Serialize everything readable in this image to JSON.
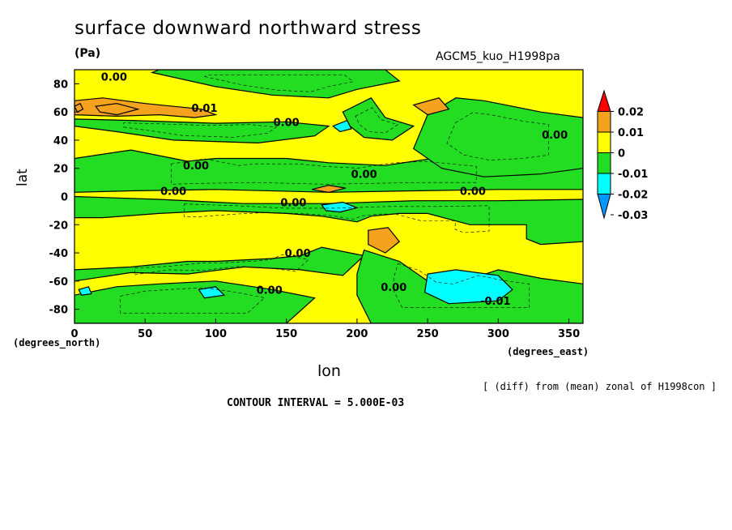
{
  "header": {
    "title": "surface downward northward stress",
    "units": "(Pa)",
    "run": "AGCM5_kuo_H1998pa"
  },
  "axes": {
    "ylabel": "lat",
    "xlabel": "lon",
    "y_units": "(degrees_north)",
    "x_units": "(degrees_east)"
  },
  "footer": {
    "diff_note": "[ (diff) from (mean) zonal of H1998con ]",
    "contour_interval": "CONTOUR INTERVAL = 5.000E-03"
  },
  "colors": {
    "red": "#ff0000",
    "orange": "#f5a21e",
    "yellow": "#ffff00",
    "green": "#22dd22",
    "cyan": "#00ffff",
    "blue": "#0099ff"
  },
  "chart_data": {
    "type": "heatmap",
    "title": "surface downward northward stress",
    "units": "Pa",
    "xlabel": "lon",
    "ylabel": "lat",
    "xlim": [
      0,
      360
    ],
    "ylim": [
      -90,
      90
    ],
    "xticks": [
      0,
      50,
      100,
      150,
      200,
      250,
      300,
      350
    ],
    "yticks": [
      -80,
      -60,
      -40,
      -20,
      0,
      20,
      40,
      60,
      80
    ],
    "contour_interval": 0.005,
    "colorbar": {
      "levels": [
        "0.02",
        "0.01",
        "0",
        "-0.01",
        "-0.02",
        "-0.03"
      ],
      "bins": [
        {
          "range": [
            0.02,
            null
          ],
          "color": "red"
        },
        {
          "range": [
            0.01,
            0.02
          ],
          "color": "orange"
        },
        {
          "range": [
            0.0,
            0.01
          ],
          "color": "yellow"
        },
        {
          "range": [
            -0.01,
            0.0
          ],
          "color": "green"
        },
        {
          "range": [
            -0.02,
            -0.01
          ],
          "color": "cyan"
        },
        {
          "range": [
            -0.03,
            -0.02
          ],
          "color": "blue"
        },
        {
          "range": [
            null,
            -0.03
          ],
          "color": "blue"
        }
      ]
    },
    "regions": [
      {
        "level": "green",
        "poly": [
          [
            0,
            27
          ],
          [
            40,
            33
          ],
          [
            80,
            25
          ],
          [
            100,
            27
          ],
          [
            150,
            27
          ],
          [
            180,
            24
          ],
          [
            220,
            22
          ],
          [
            260,
            28
          ],
          [
            300,
            30
          ],
          [
            360,
            24
          ],
          [
            360,
            5
          ],
          [
            300,
            5
          ],
          [
            240,
            4
          ],
          [
            180,
            3
          ],
          [
            100,
            5
          ],
          [
            40,
            4
          ],
          [
            0,
            3
          ]
        ]
      },
      {
        "level": "green",
        "poly": [
          [
            0,
            50
          ],
          [
            30,
            46
          ],
          [
            70,
            40
          ],
          [
            130,
            38
          ],
          [
            170,
            43
          ],
          [
            180,
            50
          ],
          [
            150,
            53
          ],
          [
            100,
            52
          ],
          [
            40,
            54
          ],
          [
            0,
            55
          ]
        ]
      },
      {
        "level": "green",
        "poly": [
          [
            0,
            0
          ],
          [
            60,
            -2
          ],
          [
            120,
            -5
          ],
          [
            180,
            -5
          ],
          [
            240,
            -3
          ],
          [
            300,
            -3
          ],
          [
            360,
            -2
          ],
          [
            360,
            -32
          ],
          [
            330,
            -34
          ],
          [
            320,
            -30
          ],
          [
            320,
            -20
          ],
          [
            280,
            -20
          ],
          [
            250,
            -12
          ],
          [
            230,
            -12
          ],
          [
            210,
            -14
          ],
          [
            200,
            -18
          ],
          [
            175,
            -14
          ],
          [
            150,
            -12
          ],
          [
            100,
            -10
          ],
          [
            60,
            -12
          ],
          [
            20,
            -15
          ],
          [
            0,
            -15
          ]
        ]
      },
      {
        "level": "green",
        "poly": [
          [
            0,
            -60
          ],
          [
            40,
            -54
          ],
          [
            80,
            -55
          ],
          [
            120,
            -50
          ],
          [
            160,
            -52
          ],
          [
            190,
            -56
          ],
          [
            205,
            -42
          ],
          [
            175,
            -36
          ],
          [
            160,
            -42
          ],
          [
            140,
            -44
          ],
          [
            100,
            -46
          ],
          [
            80,
            -46
          ],
          [
            40,
            -50
          ],
          [
            0,
            -52
          ]
        ]
      },
      {
        "level": "green",
        "poly": [
          [
            0,
            -70
          ],
          [
            30,
            -64
          ],
          [
            60,
            -62
          ],
          [
            100,
            -60
          ],
          [
            140,
            -66
          ],
          [
            170,
            -72
          ],
          [
            150,
            -90
          ],
          [
            0,
            -90
          ]
        ]
      },
      {
        "level": "green",
        "poly": [
          [
            205,
            -38
          ],
          [
            230,
            -46
          ],
          [
            250,
            -60
          ],
          [
            270,
            -62
          ],
          [
            300,
            -52
          ],
          [
            330,
            -58
          ],
          [
            360,
            -62
          ],
          [
            360,
            -90
          ],
          [
            210,
            -90
          ],
          [
            200,
            -70
          ],
          [
            200,
            -55
          ]
        ]
      },
      {
        "level": "green",
        "poly": [
          [
            250,
            58
          ],
          [
            270,
            70
          ],
          [
            290,
            68
          ],
          [
            310,
            64
          ],
          [
            330,
            60
          ],
          [
            360,
            56
          ],
          [
            360,
            20
          ],
          [
            330,
            16
          ],
          [
            290,
            14
          ],
          [
            260,
            20
          ],
          [
            240,
            34
          ]
        ]
      },
      {
        "level": "green",
        "poly": [
          [
            55,
            88
          ],
          [
            100,
            78
          ],
          [
            140,
            72
          ],
          [
            180,
            70
          ],
          [
            200,
            76
          ],
          [
            230,
            82
          ],
          [
            220,
            90
          ],
          [
            60,
            90
          ]
        ]
      },
      {
        "level": "green",
        "poly": [
          [
            190,
            60
          ],
          [
            210,
            70
          ],
          [
            220,
            56
          ],
          [
            240,
            50
          ],
          [
            225,
            40
          ],
          [
            205,
            42
          ],
          [
            195,
            50
          ]
        ]
      },
      {
        "level": "orange",
        "poly": [
          [
            0,
            68
          ],
          [
            20,
            70
          ],
          [
            50,
            66
          ],
          [
            70,
            64
          ],
          [
            90,
            62
          ],
          [
            100,
            58
          ],
          [
            85,
            56
          ],
          [
            60,
            58
          ],
          [
            30,
            57
          ],
          [
            0,
            58
          ]
        ]
      },
      {
        "level": "orange",
        "poly": [
          [
            15,
            64
          ],
          [
            30,
            66
          ],
          [
            45,
            62
          ],
          [
            30,
            58
          ],
          [
            18,
            60
          ]
        ]
      },
      {
        "level": "orange",
        "poly": [
          [
            0,
            64
          ],
          [
            4,
            66
          ],
          [
            6,
            62
          ],
          [
            2,
            60
          ]
        ]
      },
      {
        "level": "orange",
        "poly": [
          [
            240,
            65
          ],
          [
            258,
            70
          ],
          [
            265,
            62
          ],
          [
            250,
            58
          ]
        ]
      },
      {
        "level": "orange",
        "poly": [
          [
            208,
            -24
          ],
          [
            222,
            -22
          ],
          [
            230,
            -32
          ],
          [
            220,
            -40
          ],
          [
            208,
            -34
          ]
        ]
      },
      {
        "level": "orange",
        "poly": [
          [
            168,
            5
          ],
          [
            180,
            8
          ],
          [
            192,
            6
          ],
          [
            180,
            3
          ]
        ]
      },
      {
        "level": "cyan",
        "poly": [
          [
            250,
            -55
          ],
          [
            270,
            -52
          ],
          [
            300,
            -56
          ],
          [
            310,
            -66
          ],
          [
            300,
            -74
          ],
          [
            265,
            -76
          ],
          [
            248,
            -68
          ]
        ]
      },
      {
        "level": "cyan",
        "poly": [
          [
            183,
            50
          ],
          [
            193,
            54
          ],
          [
            196,
            48
          ],
          [
            188,
            46
          ]
        ]
      },
      {
        "level": "cyan",
        "poly": [
          [
            175,
            -6
          ],
          [
            190,
            -4
          ],
          [
            200,
            -8
          ],
          [
            188,
            -11
          ],
          [
            178,
            -10
          ]
        ]
      },
      {
        "level": "cyan",
        "poly": [
          [
            88,
            -66
          ],
          [
            100,
            -64
          ],
          [
            106,
            -70
          ],
          [
            92,
            -72
          ]
        ]
      },
      {
        "level": "cyan",
        "poly": [
          [
            3,
            -66
          ],
          [
            10,
            -64
          ],
          [
            12,
            -69
          ],
          [
            5,
            -70
          ]
        ]
      }
    ],
    "contour_labels": [
      {
        "text": "0.00",
        "lon": 28,
        "lat": 85
      },
      {
        "text": "0.01",
        "lon": 92,
        "lat": 63
      },
      {
        "text": "0.00",
        "lon": 150,
        "lat": 53
      },
      {
        "text": "0.00",
        "lon": 86,
        "lat": 22
      },
      {
        "text": "0.00",
        "lon": 70,
        "lat": 4
      },
      {
        "text": "0.00",
        "lon": 205,
        "lat": 16
      },
      {
        "text": "0.00",
        "lon": 155,
        "lat": -4
      },
      {
        "text": "0.00",
        "lon": 282,
        "lat": 4
      },
      {
        "text": "0.00",
        "lon": 340,
        "lat": 44
      },
      {
        "text": "0.00",
        "lon": 158,
        "lat": -40
      },
      {
        "text": "0.00",
        "lon": 138,
        "lat": -66
      },
      {
        "text": "0.00",
        "lon": 226,
        "lat": -64
      },
      {
        "text": "-0.01",
        "lon": 298,
        "lat": -74
      }
    ]
  }
}
